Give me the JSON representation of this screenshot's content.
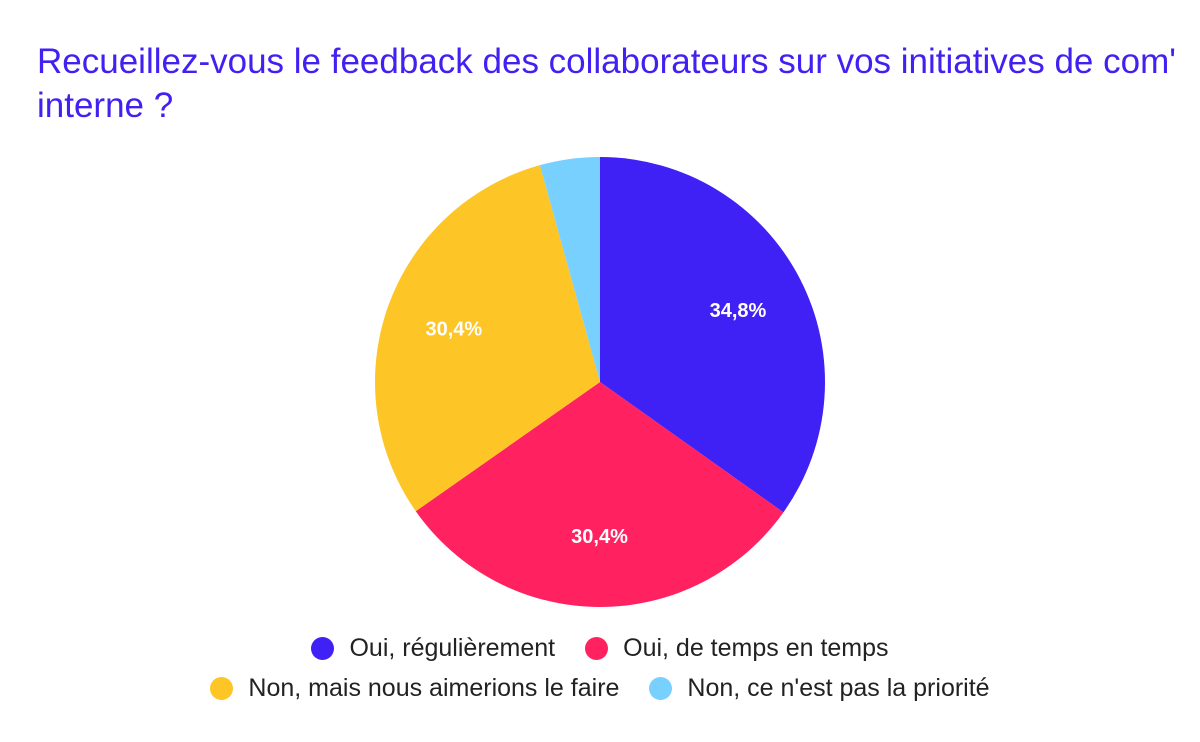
{
  "chart_data": {
    "type": "pie",
    "title": "Recueillez-vous le feedback des collaborateurs sur vos initiatives de com' interne ?",
    "slices": [
      {
        "label": "Oui, régulièrement",
        "value": 34.8,
        "value_label": "34,8%",
        "color": "#3f20f5"
      },
      {
        "label": "Oui, de temps en temps",
        "value": 30.4,
        "value_label": "30,4%",
        "color": "#ff2160"
      },
      {
        "label": "Non, mais nous aimerions le faire",
        "value": 30.4,
        "value_label": "30,4%",
        "color": "#fdc526"
      },
      {
        "label": "Non, ce n'est pas la priorité",
        "value": 4.3,
        "value_label": "",
        "color": "#78d0ff"
      }
    ],
    "legend_position": "bottom",
    "start_angle": "12 o'clock",
    "direction": "clockwise"
  }
}
